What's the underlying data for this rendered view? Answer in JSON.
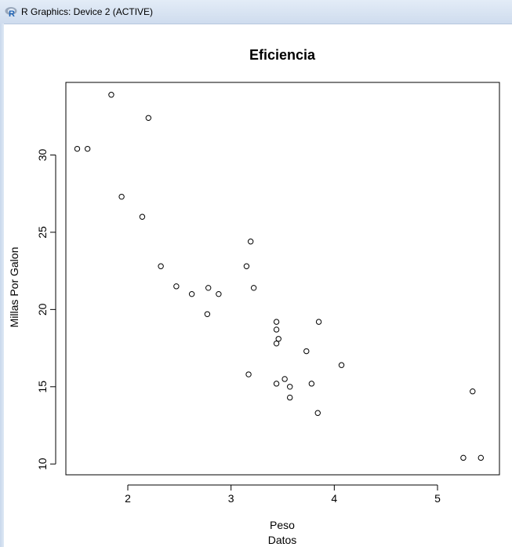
{
  "window": {
    "title": "R Graphics: Device 2 (ACTIVE)",
    "icon": "r-logo-icon"
  },
  "chart_data": {
    "type": "scatter",
    "title": "Eficiencia",
    "xlabel": "Peso",
    "subtitle": "Datos",
    "ylabel": "Millas Por Galon",
    "xlim": [
      1.4,
      5.6
    ],
    "ylim": [
      9.3,
      34.7
    ],
    "xticks": [
      2,
      3,
      4,
      5
    ],
    "yticks": [
      10,
      15,
      20,
      25,
      30
    ],
    "grid": false,
    "points": [
      [
        1.51,
        30.4
      ],
      [
        1.61,
        30.4
      ],
      [
        1.84,
        33.9
      ],
      [
        1.94,
        27.3
      ],
      [
        2.14,
        26.0
      ],
      [
        2.2,
        32.4
      ],
      [
        2.32,
        22.8
      ],
      [
        2.47,
        21.5
      ],
      [
        2.62,
        21.0
      ],
      [
        2.77,
        19.7
      ],
      [
        2.78,
        21.4
      ],
      [
        2.88,
        21.0
      ],
      [
        3.15,
        22.8
      ],
      [
        3.17,
        15.8
      ],
      [
        3.19,
        24.4
      ],
      [
        3.22,
        21.4
      ],
      [
        3.44,
        15.2
      ],
      [
        3.44,
        19.2
      ],
      [
        3.44,
        18.7
      ],
      [
        3.44,
        17.8
      ],
      [
        3.46,
        18.1
      ],
      [
        3.52,
        15.5
      ],
      [
        3.57,
        15.0
      ],
      [
        3.57,
        14.3
      ],
      [
        3.73,
        17.3
      ],
      [
        3.78,
        15.2
      ],
      [
        3.84,
        13.3
      ],
      [
        3.85,
        19.2
      ],
      [
        4.07,
        16.4
      ],
      [
        5.25,
        10.4
      ],
      [
        5.34,
        14.7
      ],
      [
        5.42,
        10.4
      ]
    ]
  }
}
